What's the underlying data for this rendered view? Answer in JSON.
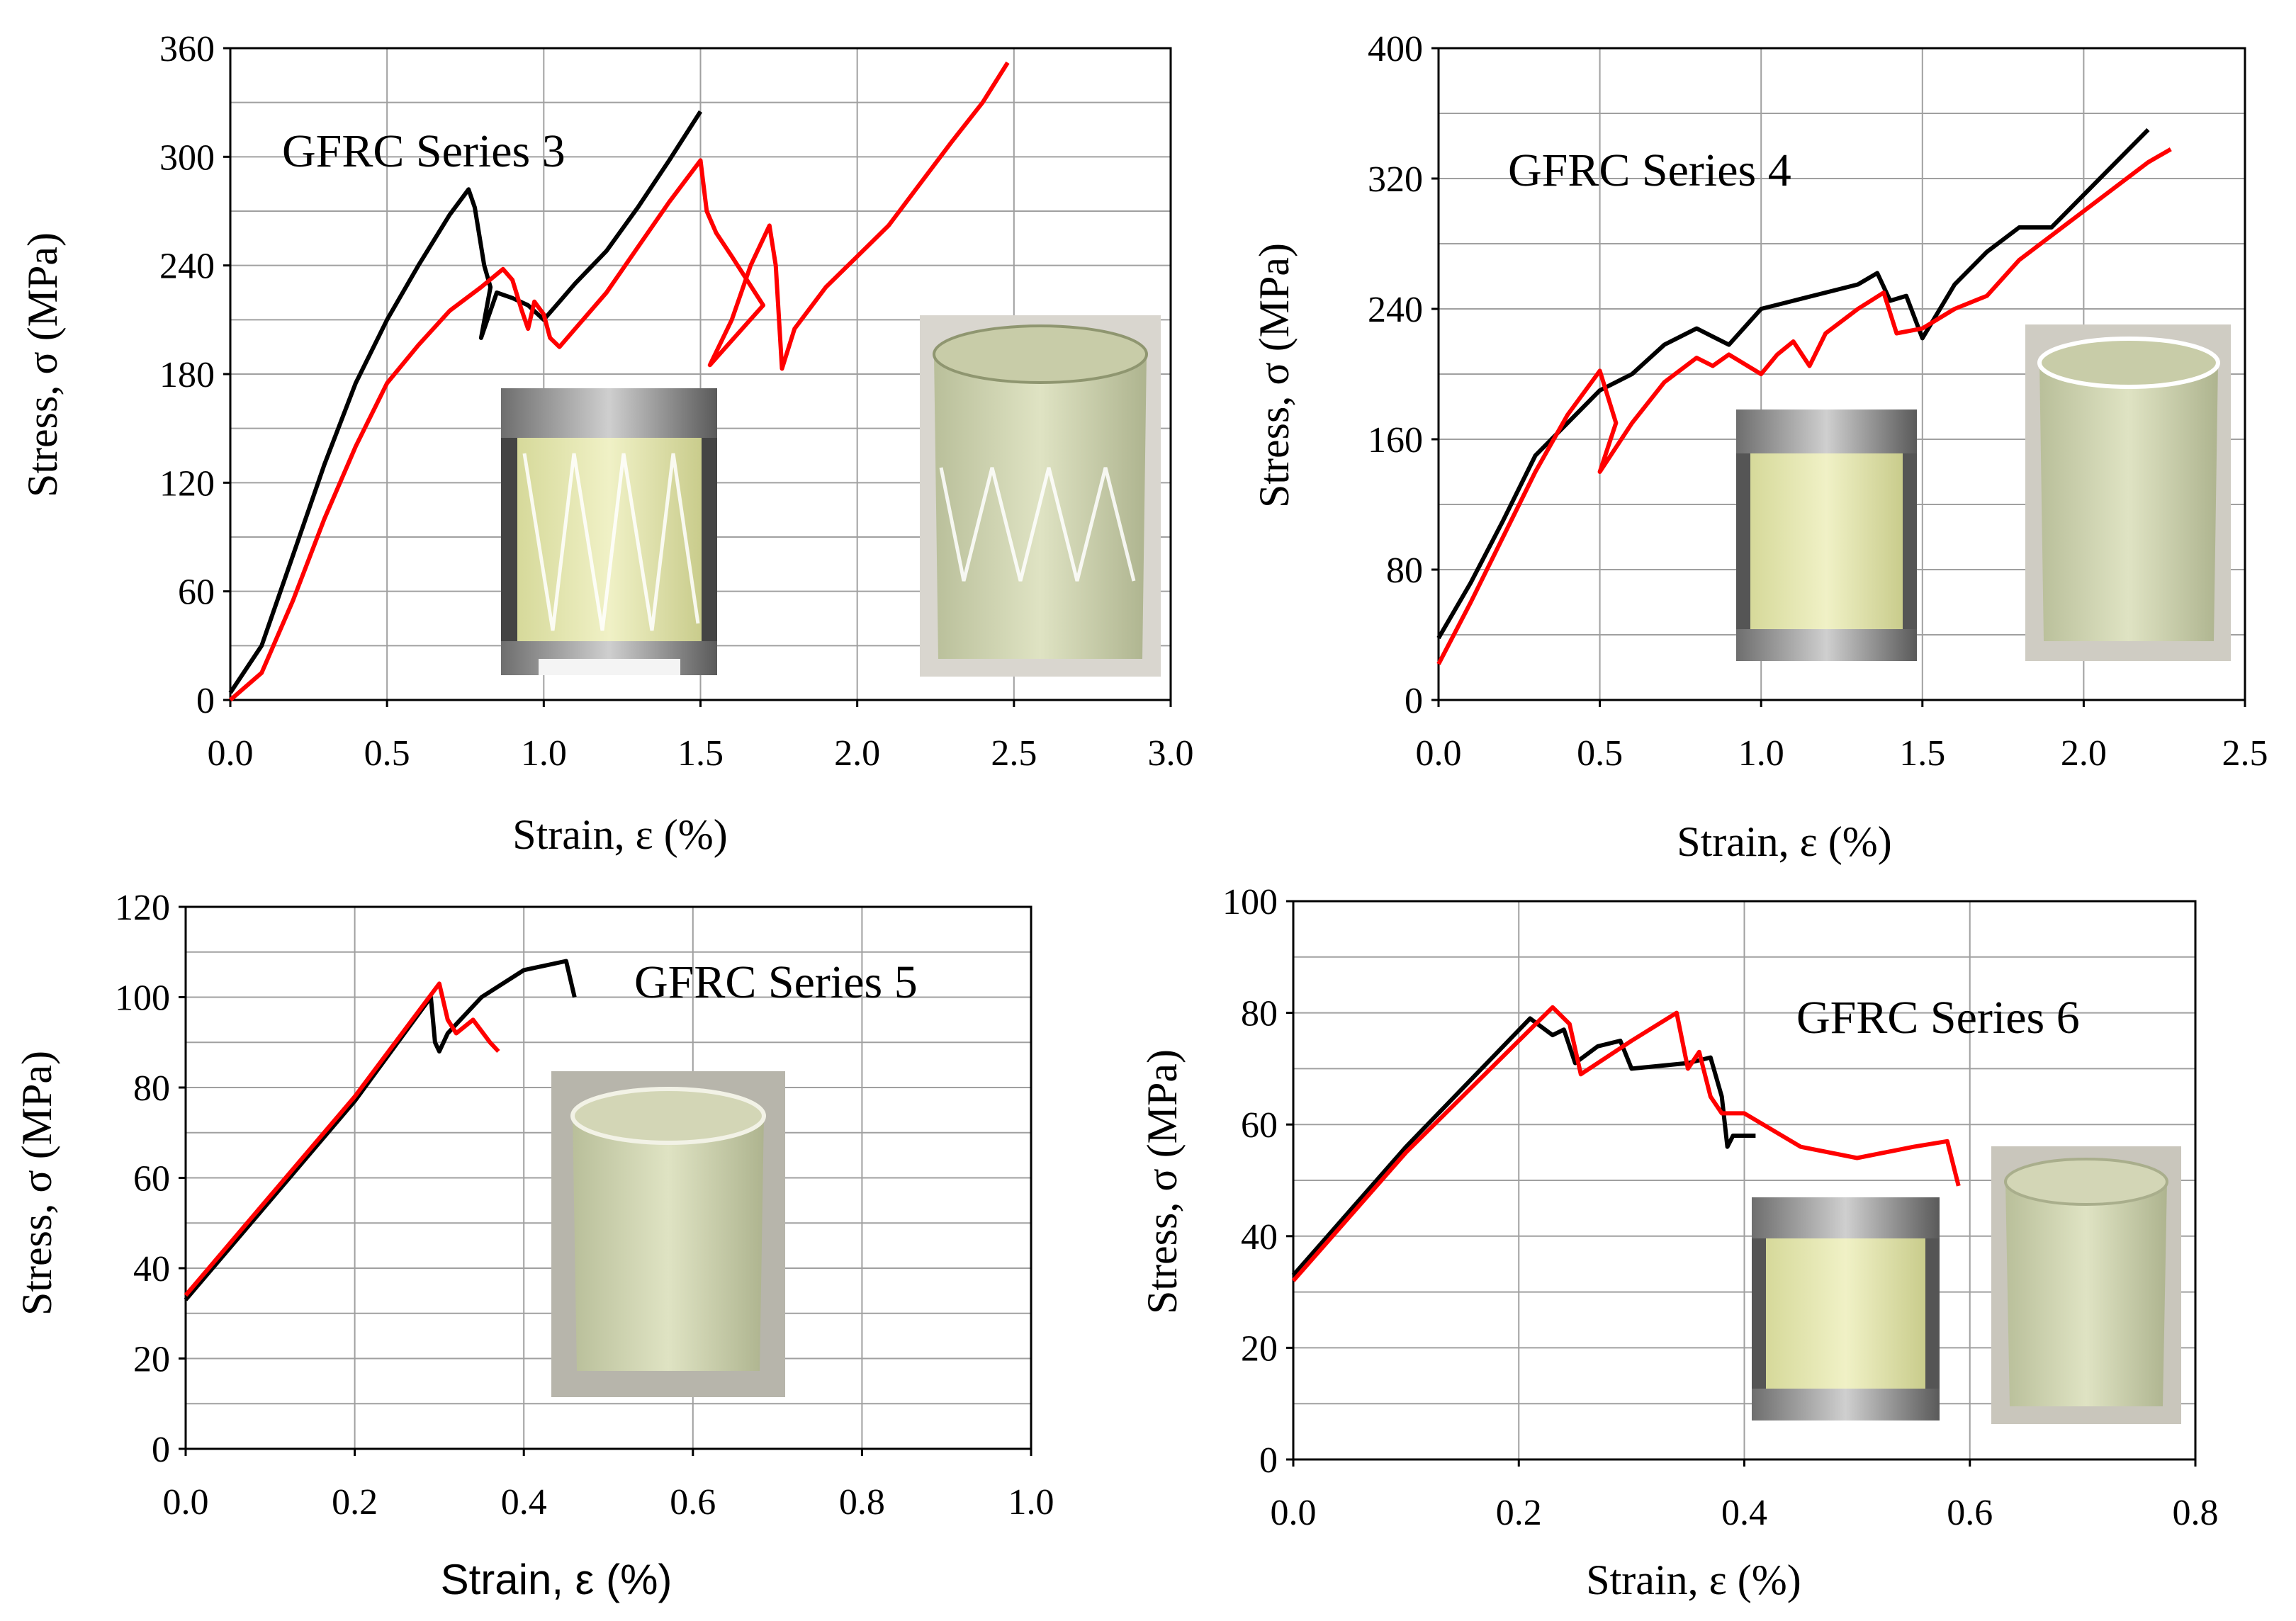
{
  "chart_data": [
    {
      "type": "line",
      "title": "GFRC Series 3",
      "xlabel": "Strain, ε (%)",
      "ylabel": "Stress, σ (MPa)",
      "xlim": [
        0,
        3.0
      ],
      "ylim": [
        0,
        360
      ],
      "xticks": [
        "0.0",
        "0.5",
        "1.0",
        "1.5",
        "2.0",
        "2.5",
        "3.0"
      ],
      "yticks": [
        "0",
        "60",
        "120",
        "180",
        "240",
        "300",
        "360"
      ],
      "grid": true,
      "colors": [
        "#000000",
        "#ff0000"
      ],
      "series": [
        {
          "values": [
            [
              0.0,
              4
            ],
            [
              0.1,
              30
            ],
            [
              0.2,
              80
            ],
            [
              0.3,
              130
            ],
            [
              0.4,
              175
            ],
            [
              0.5,
              210
            ],
            [
              0.6,
              240
            ],
            [
              0.7,
              268
            ],
            [
              0.76,
              282
            ],
            [
              0.78,
              272
            ],
            [
              0.81,
              240
            ],
            [
              0.83,
              228
            ],
            [
              0.8,
              200
            ],
            [
              0.85,
              225
            ],
            [
              0.9,
              222
            ],
            [
              0.95,
              218
            ],
            [
              1.0,
              210
            ],
            [
              1.05,
              220
            ],
            [
              1.1,
              230
            ],
            [
              1.2,
              248
            ],
            [
              1.3,
              272
            ],
            [
              1.4,
              298
            ],
            [
              1.5,
              325
            ]
          ]
        },
        {
          "values": [
            [
              0.0,
              0
            ],
            [
              0.1,
              15
            ],
            [
              0.2,
              55
            ],
            [
              0.3,
              100
            ],
            [
              0.4,
              140
            ],
            [
              0.5,
              175
            ],
            [
              0.6,
              196
            ],
            [
              0.7,
              215
            ],
            [
              0.8,
              228
            ],
            [
              0.87,
              238
            ],
            [
              0.9,
              232
            ],
            [
              0.93,
              215
            ],
            [
              0.95,
              205
            ],
            [
              0.97,
              220
            ],
            [
              1.0,
              213
            ],
            [
              1.02,
              200
            ],
            [
              1.05,
              195
            ],
            [
              1.1,
              205
            ],
            [
              1.2,
              225
            ],
            [
              1.3,
              250
            ],
            [
              1.4,
              275
            ],
            [
              1.5,
              298
            ],
            [
              1.52,
              270
            ],
            [
              1.55,
              258
            ],
            [
              1.6,
              245
            ],
            [
              1.7,
              218
            ],
            [
              1.53,
              185
            ],
            [
              1.6,
              210
            ],
            [
              1.66,
              240
            ],
            [
              1.72,
              262
            ],
            [
              1.74,
              240
            ],
            [
              1.76,
              183
            ],
            [
              1.8,
              205
            ],
            [
              1.9,
              228
            ],
            [
              2.0,
              245
            ],
            [
              2.1,
              262
            ],
            [
              2.2,
              285
            ],
            [
              2.3,
              308
            ],
            [
              2.4,
              330
            ],
            [
              2.48,
              352
            ]
          ]
        }
      ]
    },
    {
      "type": "line",
      "title": "GFRC Series 4",
      "xlabel": "Strain, ε (%)",
      "ylabel": "Stress, σ (MPa)",
      "xlim": [
        0,
        2.5
      ],
      "ylim": [
        0,
        400
      ],
      "xticks": [
        "0.0",
        "0.5",
        "1.0",
        "1.5",
        "2.0",
        "2.5"
      ],
      "yticks": [
        "0",
        "80",
        "160",
        "240",
        "320",
        "400"
      ],
      "grid": true,
      "colors": [
        "#000000",
        "#ff0000"
      ],
      "series": [
        {
          "values": [
            [
              0.0,
              38
            ],
            [
              0.1,
              72
            ],
            [
              0.2,
              110
            ],
            [
              0.3,
              150
            ],
            [
              0.4,
              170
            ],
            [
              0.5,
              190
            ],
            [
              0.6,
              200
            ],
            [
              0.7,
              218
            ],
            [
              0.8,
              228
            ],
            [
              0.9,
              218
            ],
            [
              1.0,
              240
            ],
            [
              1.1,
              245
            ],
            [
              1.2,
              250
            ],
            [
              1.3,
              255
            ],
            [
              1.36,
              262
            ],
            [
              1.4,
              245
            ],
            [
              1.45,
              248
            ],
            [
              1.5,
              222
            ],
            [
              1.6,
              255
            ],
            [
              1.7,
              275
            ],
            [
              1.8,
              290
            ],
            [
              1.9,
              290
            ],
            [
              2.0,
              310
            ],
            [
              2.1,
              330
            ],
            [
              2.2,
              350
            ]
          ]
        },
        {
          "values": [
            [
              0.0,
              22
            ],
            [
              0.1,
              60
            ],
            [
              0.2,
              100
            ],
            [
              0.3,
              140
            ],
            [
              0.4,
              175
            ],
            [
              0.5,
              202
            ],
            [
              0.55,
              170
            ],
            [
              0.5,
              140
            ],
            [
              0.6,
              170
            ],
            [
              0.7,
              195
            ],
            [
              0.8,
              210
            ],
            [
              0.85,
              205
            ],
            [
              0.9,
              212
            ],
            [
              1.0,
              200
            ],
            [
              1.05,
              212
            ],
            [
              1.1,
              220
            ],
            [
              1.15,
              205
            ],
            [
              1.2,
              225
            ],
            [
              1.3,
              240
            ],
            [
              1.38,
              250
            ],
            [
              1.42,
              225
            ],
            [
              1.5,
              228
            ],
            [
              1.6,
              240
            ],
            [
              1.7,
              248
            ],
            [
              1.8,
              270
            ],
            [
              1.9,
              285
            ],
            [
              2.0,
              300
            ],
            [
              2.1,
              315
            ],
            [
              2.2,
              330
            ],
            [
              2.27,
              338
            ]
          ]
        }
      ]
    },
    {
      "type": "line",
      "title": "GFRC Series 5",
      "xlabel": "Strain, ε (%)",
      "ylabel": "Stress, σ (MPa)",
      "xlim": [
        0,
        1.0
      ],
      "ylim": [
        0,
        120
      ],
      "xticks": [
        "0.0",
        "0.2",
        "0.4",
        "0.6",
        "0.8",
        "1.0"
      ],
      "yticks": [
        "0",
        "20",
        "40",
        "60",
        "80",
        "100",
        "120"
      ],
      "grid": true,
      "colors": [
        "#000000",
        "#ff0000"
      ],
      "series": [
        {
          "values": [
            [
              0.0,
              33
            ],
            [
              0.1,
              55
            ],
            [
              0.2,
              77
            ],
            [
              0.29,
              100
            ],
            [
              0.295,
              90
            ],
            [
              0.3,
              88
            ],
            [
              0.31,
              92
            ],
            [
              0.35,
              100
            ],
            [
              0.4,
              106
            ],
            [
              0.45,
              108
            ],
            [
              0.46,
              100
            ]
          ]
        },
        {
          "values": [
            [
              0.0,
              34
            ],
            [
              0.1,
              56
            ],
            [
              0.2,
              78
            ],
            [
              0.3,
              103
            ],
            [
              0.31,
              95
            ],
            [
              0.32,
              92
            ],
            [
              0.34,
              95
            ],
            [
              0.36,
              90
            ],
            [
              0.37,
              88
            ]
          ]
        }
      ]
    },
    {
      "type": "line",
      "title": "GFRC Series 6",
      "xlabel": "Strain, ε (%)",
      "ylabel": "Stress, σ (MPa)",
      "xlim": [
        0,
        0.8
      ],
      "ylim": [
        0,
        100
      ],
      "xticks": [
        "0.0",
        "0.2",
        "0.4",
        "0.6",
        "0.8"
      ],
      "yticks": [
        "0",
        "20",
        "40",
        "60",
        "80",
        "100"
      ],
      "grid": true,
      "colors": [
        "#000000",
        "#ff0000"
      ],
      "series": [
        {
          "values": [
            [
              0.0,
              33
            ],
            [
              0.1,
              56
            ],
            [
              0.21,
              79
            ],
            [
              0.23,
              76
            ],
            [
              0.24,
              77
            ],
            [
              0.25,
              71
            ],
            [
              0.27,
              74
            ],
            [
              0.29,
              75
            ],
            [
              0.3,
              70
            ],
            [
              0.35,
              71
            ],
            [
              0.37,
              72
            ],
            [
              0.38,
              65
            ],
            [
              0.385,
              56
            ],
            [
              0.39,
              58
            ],
            [
              0.41,
              58
            ]
          ]
        },
        {
          "values": [
            [
              0.0,
              32
            ],
            [
              0.1,
              55
            ],
            [
              0.23,
              81
            ],
            [
              0.245,
              78
            ],
            [
              0.255,
              69
            ],
            [
              0.3,
              75
            ],
            [
              0.34,
              80
            ],
            [
              0.35,
              70
            ],
            [
              0.36,
              73
            ],
            [
              0.37,
              65
            ],
            [
              0.38,
              62
            ],
            [
              0.4,
              62
            ],
            [
              0.45,
              56
            ],
            [
              0.5,
              54
            ],
            [
              0.55,
              56
            ],
            [
              0.58,
              57
            ],
            [
              0.59,
              49
            ]
          ]
        }
      ]
    }
  ]
}
